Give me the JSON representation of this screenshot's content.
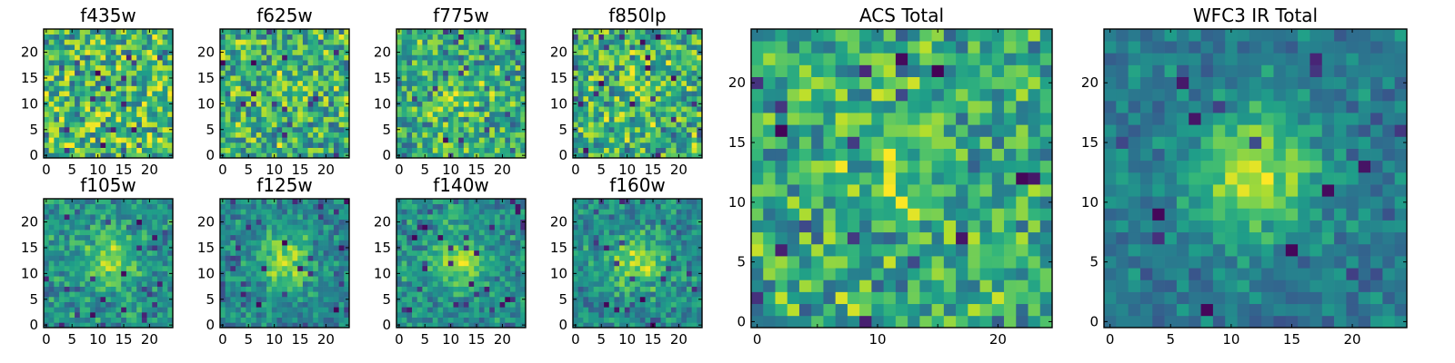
{
  "chart_data": [
    {
      "type": "heatmap",
      "title": "f435w",
      "xticks": [
        "0",
        "5",
        "10",
        "15",
        "20"
      ],
      "yticks": [
        "0",
        "5",
        "10",
        "15",
        "20"
      ],
      "grid_size": 25,
      "colormap": "viridis",
      "pattern": "noise",
      "blob_strength": 0.0,
      "seed": 11
    },
    {
      "type": "heatmap",
      "title": "f625w",
      "xticks": [
        "0",
        "5",
        "10",
        "15",
        "20"
      ],
      "yticks": [
        "0",
        "5",
        "10",
        "15",
        "20"
      ],
      "grid_size": 25,
      "colormap": "viridis",
      "pattern": "noise",
      "blob_strength": 0.1,
      "seed": 23
    },
    {
      "type": "heatmap",
      "title": "f775w",
      "xticks": [
        "0",
        "5",
        "10",
        "15",
        "20"
      ],
      "yticks": [
        "0",
        "5",
        "10",
        "15",
        "20"
      ],
      "grid_size": 25,
      "colormap": "viridis",
      "pattern": "noise",
      "blob_strength": 0.15,
      "seed": 37
    },
    {
      "type": "heatmap",
      "title": "f850lp",
      "xticks": [
        "0",
        "5",
        "10",
        "15",
        "20"
      ],
      "yticks": [
        "0",
        "5",
        "10",
        "15",
        "20"
      ],
      "grid_size": 25,
      "colormap": "viridis",
      "pattern": "noise",
      "blob_strength": 0.1,
      "seed": 41
    },
    {
      "type": "heatmap",
      "title": "f105w",
      "xticks": [
        "0",
        "5",
        "10",
        "15",
        "20"
      ],
      "yticks": [
        "0",
        "5",
        "10",
        "15",
        "20"
      ],
      "grid_size": 25,
      "colormap": "viridis",
      "pattern": "blob",
      "blob_strength": 0.45,
      "seed": 53
    },
    {
      "type": "heatmap",
      "title": "f125w",
      "xticks": [
        "0",
        "5",
        "10",
        "15",
        "20"
      ],
      "yticks": [
        "0",
        "5",
        "10",
        "15",
        "20"
      ],
      "grid_size": 25,
      "colormap": "viridis",
      "pattern": "blob",
      "blob_strength": 0.55,
      "seed": 67
    },
    {
      "type": "heatmap",
      "title": "f140w",
      "xticks": [
        "0",
        "5",
        "10",
        "15",
        "20"
      ],
      "yticks": [
        "0",
        "5",
        "10",
        "15",
        "20"
      ],
      "grid_size": 25,
      "colormap": "viridis",
      "pattern": "blob",
      "blob_strength": 0.5,
      "seed": 71
    },
    {
      "type": "heatmap",
      "title": "f160w",
      "xticks": [
        "0",
        "5",
        "10",
        "15",
        "20"
      ],
      "yticks": [
        "0",
        "5",
        "10",
        "15",
        "20"
      ],
      "grid_size": 25,
      "colormap": "viridis",
      "pattern": "blob",
      "blob_strength": 0.5,
      "seed": 83
    },
    {
      "type": "heatmap",
      "title": "ACS Total",
      "xticks": [
        "0",
        "10",
        "20"
      ],
      "yticks": [
        "0",
        "5",
        "10",
        "15",
        "20"
      ],
      "grid_size": 25,
      "colormap": "viridis",
      "pattern": "noise",
      "blob_strength": 0.2,
      "seed": 97
    },
    {
      "type": "heatmap",
      "title": "WFC3 IR Total",
      "xticks": [
        "0",
        "5",
        "10",
        "15",
        "20"
      ],
      "yticks": [
        "0",
        "5",
        "10",
        "15",
        "20"
      ],
      "grid_size": 25,
      "colormap": "viridis",
      "pattern": "blob",
      "blob_strength": 0.7,
      "seed": 101
    }
  ]
}
